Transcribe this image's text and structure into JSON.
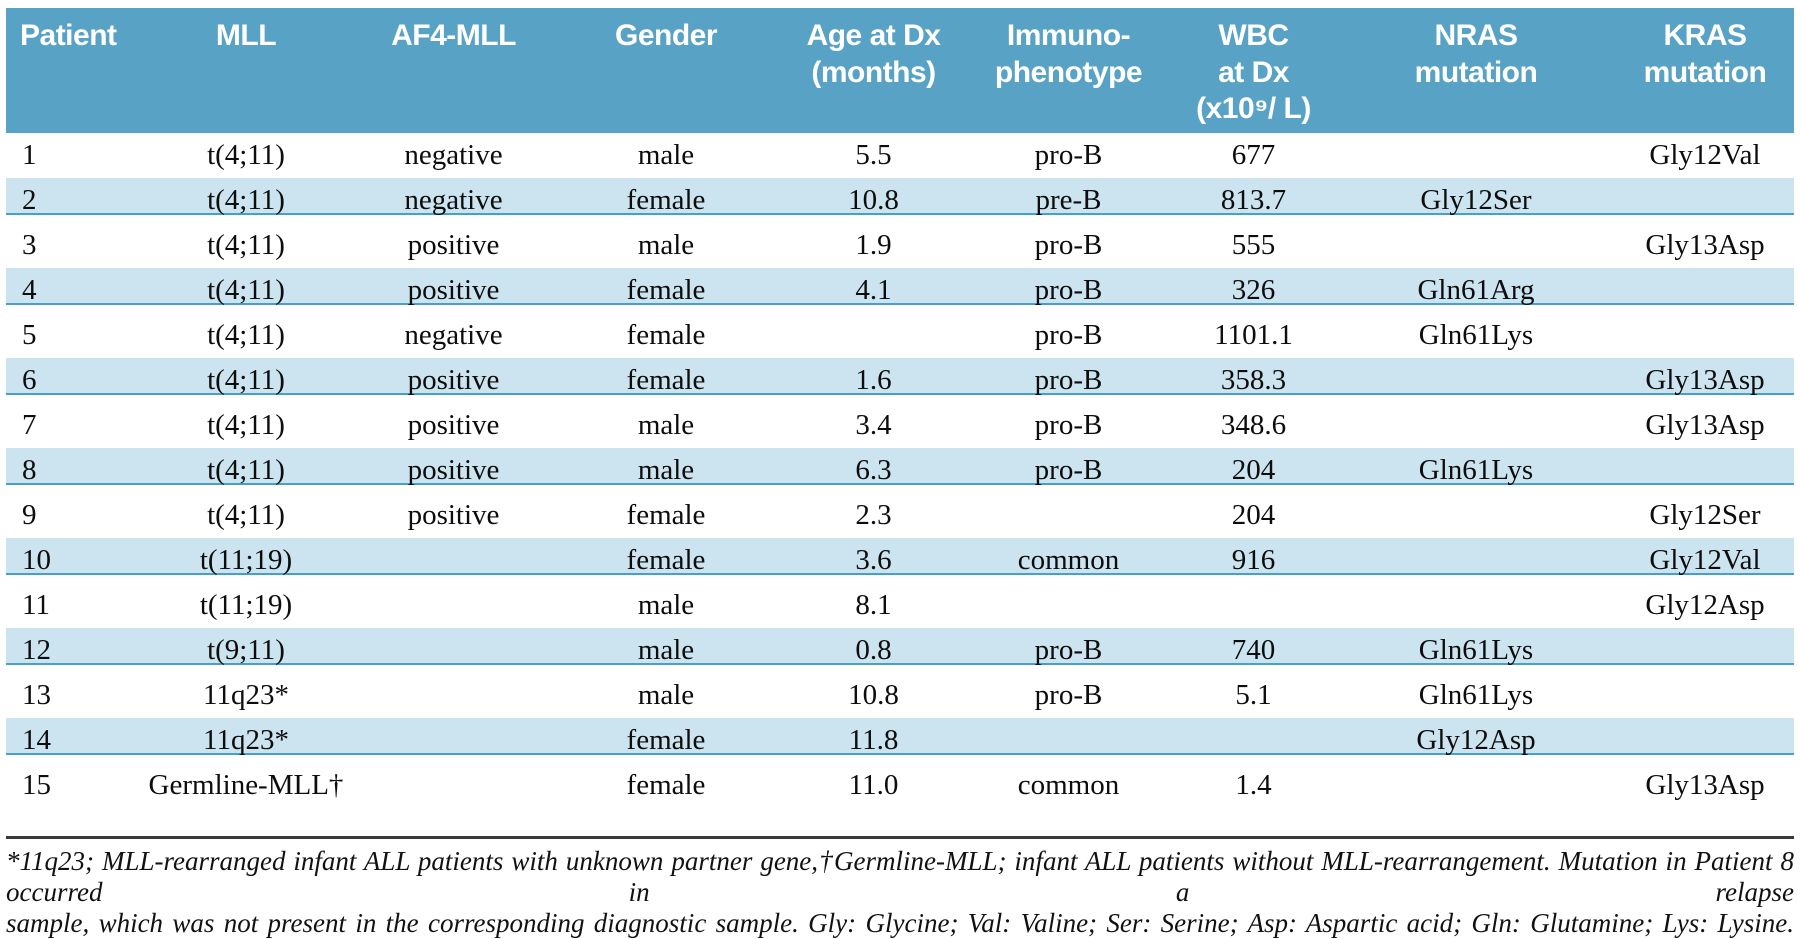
{
  "table": {
    "columns": [
      {
        "id": "patient",
        "label": "Patient"
      },
      {
        "id": "mll",
        "label": "MLL"
      },
      {
        "id": "af4mll",
        "label": "AF4-MLL"
      },
      {
        "id": "gender",
        "label": "Gender"
      },
      {
        "id": "age",
        "label": "Age at Dx\n(months)"
      },
      {
        "id": "immuno",
        "label": "Immuno-\nphenotype"
      },
      {
        "id": "wbc",
        "label": "WBC\nat Dx\n(x10⁹/ L)"
      },
      {
        "id": "nras",
        "label": "NRAS\nmutation"
      },
      {
        "id": "kras",
        "label": "KRAS\nmutation"
      }
    ],
    "rows": [
      [
        "1",
        "t(4;11)",
        "negative",
        "male",
        "5.5",
        "pro-B",
        "677",
        "",
        "Gly12Val"
      ],
      [
        "2",
        "t(4;11)",
        "negative",
        "female",
        "10.8",
        "pre-B",
        "813.7",
        "Gly12Ser",
        ""
      ],
      [
        "3",
        "t(4;11)",
        "positive",
        "male",
        "1.9",
        "pro-B",
        "555",
        "",
        "Gly13Asp"
      ],
      [
        "4",
        "t(4;11)",
        "positive",
        "female",
        "4.1",
        "pro-B",
        "326",
        "Gln61Arg",
        ""
      ],
      [
        "5",
        "t(4;11)",
        "negative",
        "female",
        "",
        "pro-B",
        "1101.1",
        "Gln61Lys",
        ""
      ],
      [
        "6",
        "t(4;11)",
        "positive",
        "female",
        "1.6",
        "pro-B",
        "358.3",
        "",
        "Gly13Asp"
      ],
      [
        "7",
        "t(4;11)",
        "positive",
        "male",
        "3.4",
        "pro-B",
        "348.6",
        "",
        "Gly13Asp"
      ],
      [
        "8",
        "t(4;11)",
        "positive",
        "male",
        "6.3",
        "pro-B",
        "204",
        "Gln61Lys",
        ""
      ],
      [
        "9",
        "t(4;11)",
        "positive",
        "female",
        "2.3",
        "",
        "204",
        "",
        "Gly12Ser"
      ],
      [
        "10",
        "t(11;19)",
        "",
        "female",
        "3.6",
        "common",
        "916",
        "",
        "Gly12Val"
      ],
      [
        "11",
        "t(11;19)",
        "",
        "male",
        "8.1",
        "",
        "",
        "",
        "Gly12Asp"
      ],
      [
        "12",
        "t(9;11)",
        "",
        "male",
        "0.8",
        "pro-B",
        "740",
        "Gln61Lys",
        ""
      ],
      [
        "13",
        "11q23*",
        "",
        "male",
        "10.8",
        "pro-B",
        "5.1",
        "Gln61Lys",
        ""
      ],
      [
        "14",
        "11q23*",
        "",
        "female",
        "11.8",
        "",
        "",
        "Gly12Asp",
        ""
      ],
      [
        "15",
        "Germline-MLL†",
        "",
        "female",
        "11.0",
        "common",
        "1.4",
        "",
        "Gly13Asp"
      ]
    ]
  },
  "footnote": {
    "line1": "*11q23; MLL-rearranged infant ALL patients with unknown partner gene,†Germline-MLL; infant ALL patients without MLL-rearrangement. Mutation in Patient 8 occurred in a relapse",
    "line2": "sample, which was not present in the corresponding diagnostic sample. Gly: Glycine; Val: Valine; Ser: Serine; Asp: Aspartic acid; Gln: Glutamine; Lys: Lysine."
  },
  "colors": {
    "header_bg": "#58a3c5",
    "stripe_bg": "#cce3f0",
    "stripe_line": "#47a0c5",
    "footnote_rule": "#3a3a3a",
    "header_text": "#ffffff",
    "body_text": "#0d0d0d"
  }
}
